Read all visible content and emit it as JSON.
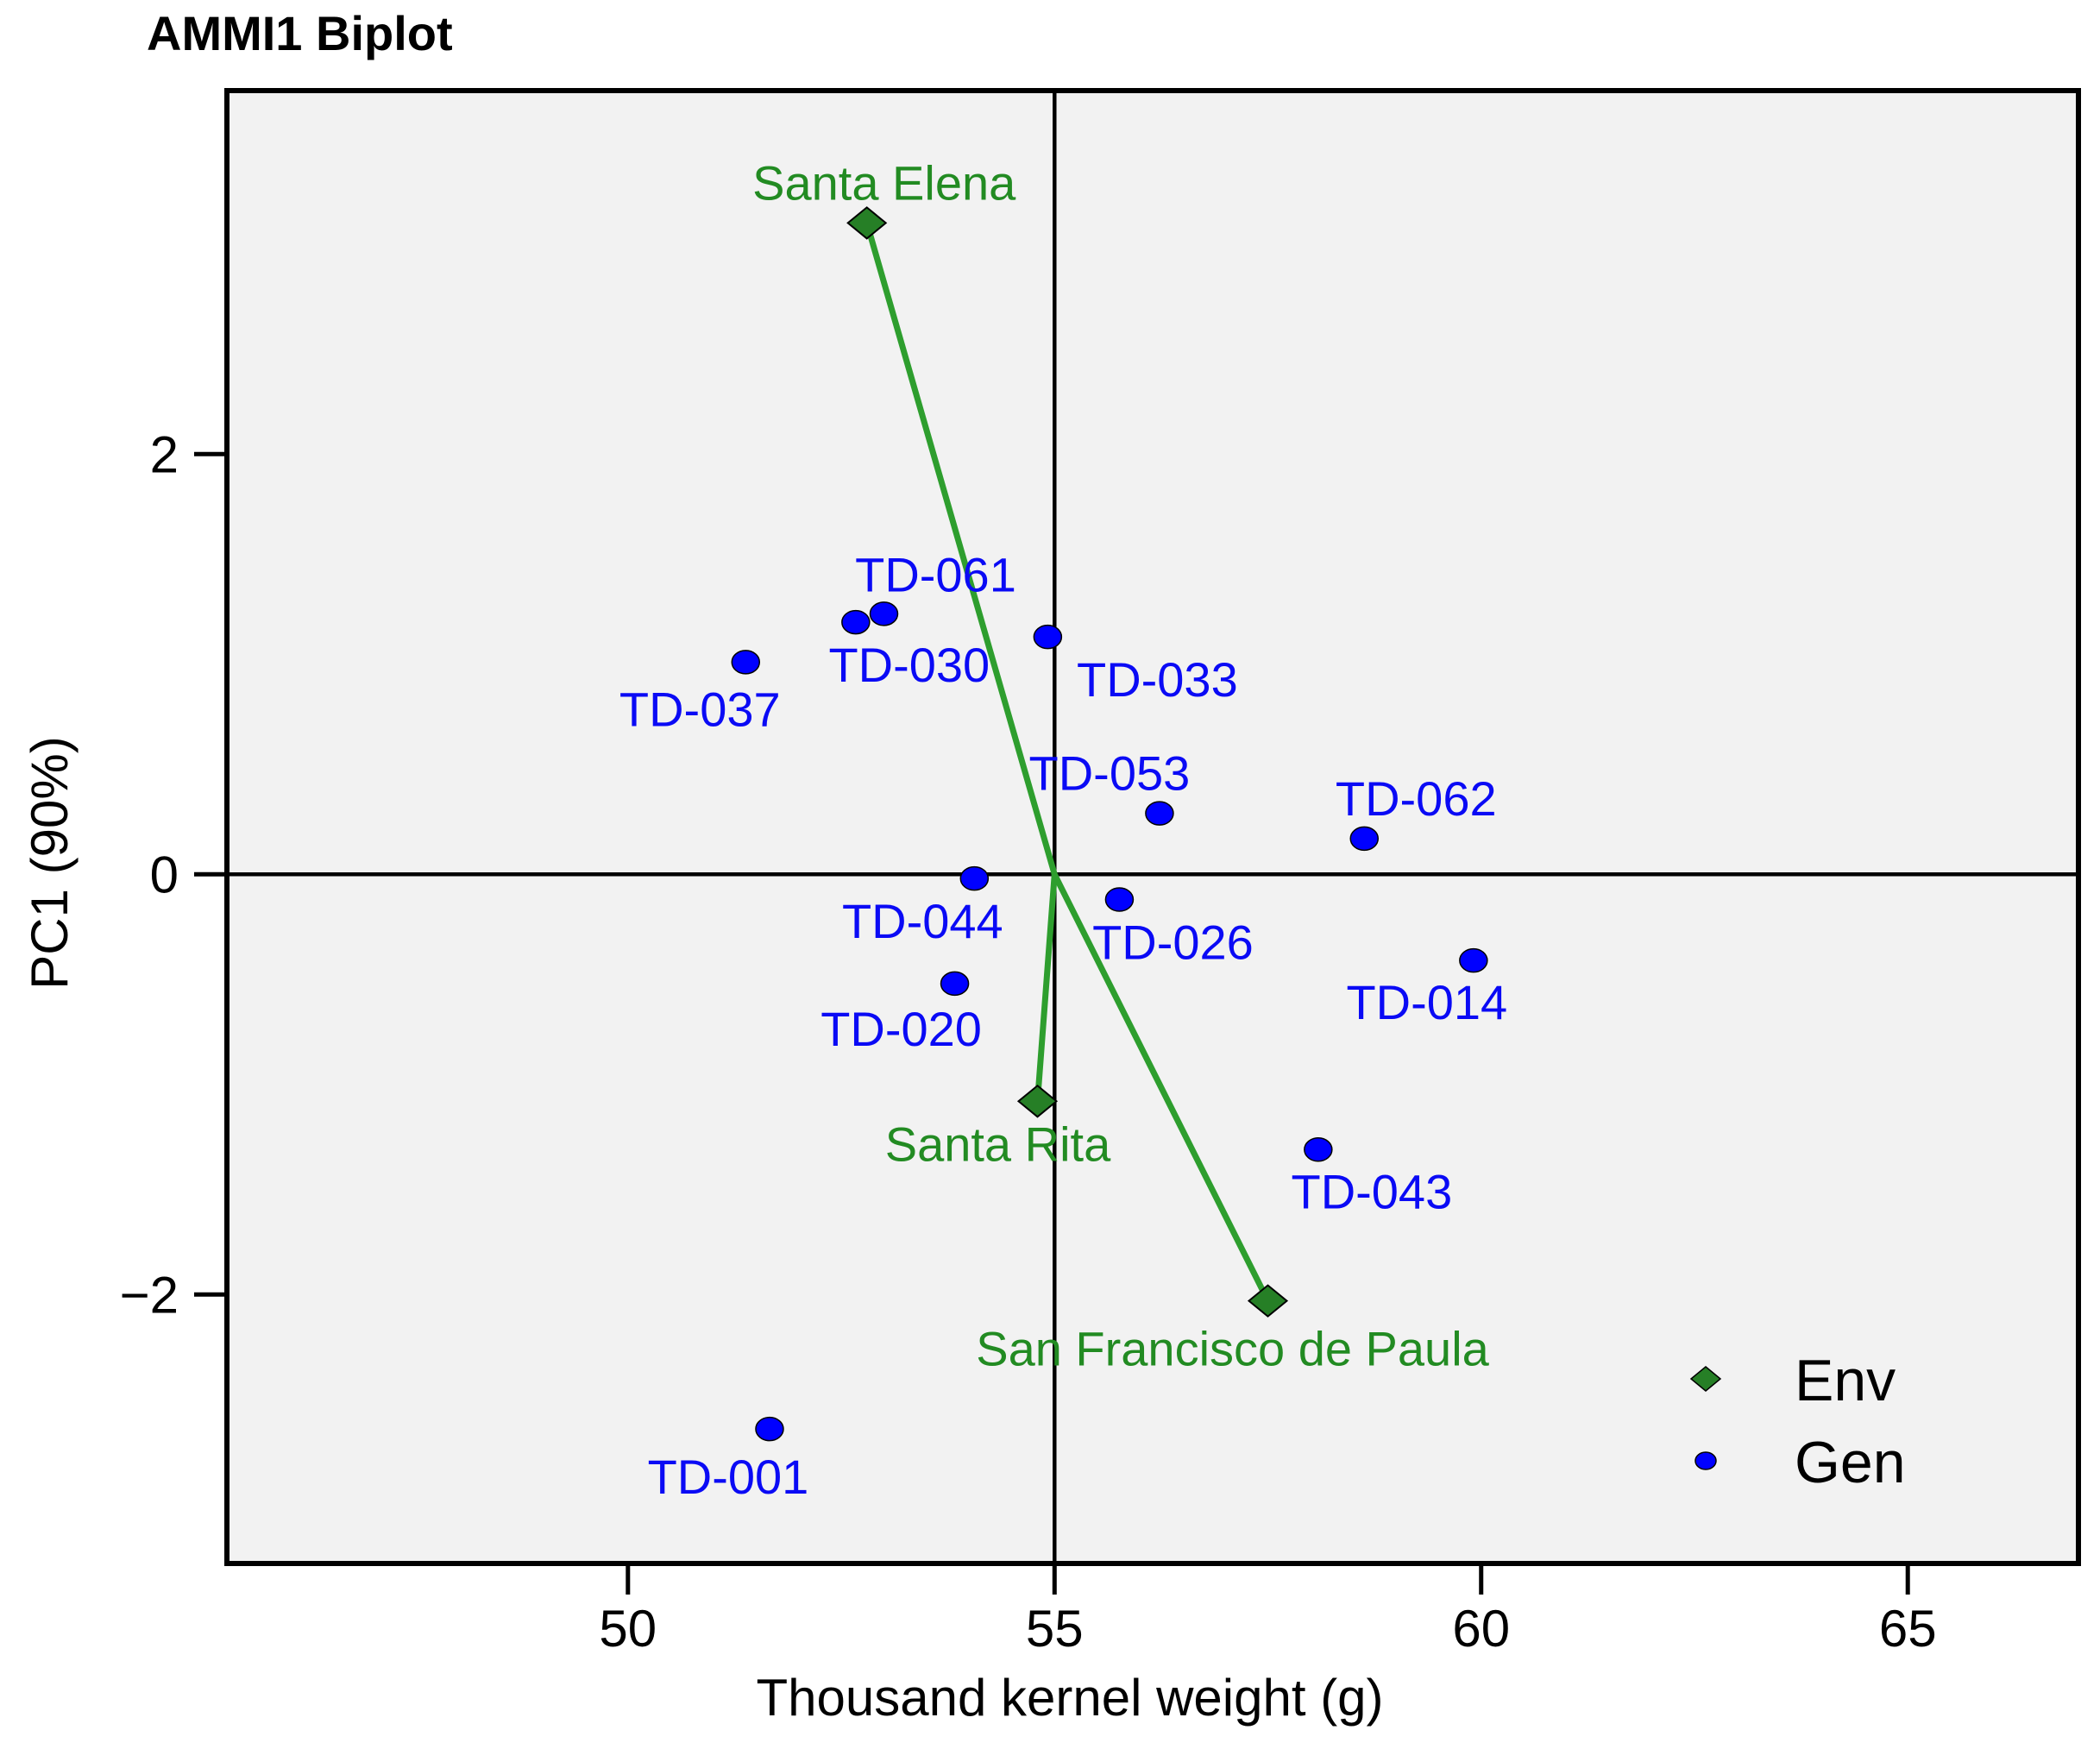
{
  "title": "AMMI1 Biplot",
  "x_axis": {
    "label": "Thousand kernel weight (g)",
    "ticks": [
      "50",
      "55",
      "60",
      "65"
    ]
  },
  "y_axis": {
    "label": "PC1 (90%)",
    "ticks": [
      "2",
      "0",
      "−2"
    ]
  },
  "legend": {
    "items": [
      {
        "label": "Env",
        "marker": "diamond"
      },
      {
        "label": "Gen",
        "marker": "circle"
      }
    ]
  },
  "colors": {
    "panel_bg": "#F2F2F2",
    "axis": "#000000",
    "env_marker": "#267F26",
    "env_line": "#2E9E2E",
    "env_text": "#228B22",
    "gen_marker": "#0000FF",
    "gen_text": "#0A0AF5"
  },
  "chart_data": {
    "type": "scatter",
    "title": "AMMI1 Biplot",
    "xlabel": "Thousand kernel weight (g)",
    "ylabel": "PC1 (90%)",
    "xlim": [
      45.3,
      67.0
    ],
    "ylim": [
      -3.28,
      3.73
    ],
    "x_ticks": [
      50,
      55,
      60,
      65
    ],
    "y_ticks": [
      2,
      0,
      -2
    ],
    "grid": false,
    "reference_lines": {
      "x": 55,
      "y": 0
    },
    "legend_position": "inside-bottom-right",
    "series": [
      {
        "name": "Env",
        "marker": "diamond",
        "spokes_from": {
          "x": 55,
          "y": 0
        },
        "points": [
          {
            "label": "Santa Elena",
            "x": 52.8,
            "y": 3.1,
            "label_dx": 20,
            "label_dy": -47
          },
          {
            "label": "Santa Rita",
            "x": 54.8,
            "y": -1.08,
            "label_dx": -46,
            "label_dy": 49
          },
          {
            "label": "San Francisco de Paula",
            "x": 57.5,
            "y": -2.03,
            "label_dx": -41,
            "label_dy": 55
          }
        ]
      },
      {
        "name": "Gen",
        "marker": "circle",
        "points": [
          {
            "label": "TD-061",
            "x": 53.0,
            "y": 1.24,
            "label_dx": 60,
            "label_dy": -46
          },
          {
            "label": "TD-030",
            "x": 52.67,
            "y": 1.2,
            "label_dx": 62,
            "label_dy": 49
          },
          {
            "label": "TD-037",
            "x": 51.38,
            "y": 1.01,
            "label_dx": -53,
            "label_dy": 54
          },
          {
            "label": "TD-033",
            "x": 54.92,
            "y": 1.13,
            "label_dx": 127,
            "label_dy": 49
          },
          {
            "label": "TD-053",
            "x": 56.23,
            "y": 0.29,
            "label_dx": -58,
            "label_dy": -47
          },
          {
            "label": "TD-062",
            "x": 58.63,
            "y": 0.17,
            "label_dx": 60,
            "label_dy": -47
          },
          {
            "label": "TD-044",
            "x": 54.06,
            "y": -0.02,
            "label_dx": -60,
            "label_dy": 49
          },
          {
            "label": "TD-026",
            "x": 55.76,
            "y": -0.12,
            "label_dx": 62,
            "label_dy": 49
          },
          {
            "label": "TD-020",
            "x": 53.83,
            "y": -0.52,
            "label_dx": -62,
            "label_dy": 52
          },
          {
            "label": "TD-014",
            "x": 59.91,
            "y": -0.41,
            "label_dx": -54,
            "label_dy": 48
          },
          {
            "label": "TD-043",
            "x": 58.09,
            "y": -1.31,
            "label_dx": 62,
            "label_dy": 48
          },
          {
            "label": "TD-001",
            "x": 51.66,
            "y": -2.64,
            "label_dx": -48,
            "label_dy": 55
          }
        ]
      }
    ]
  }
}
